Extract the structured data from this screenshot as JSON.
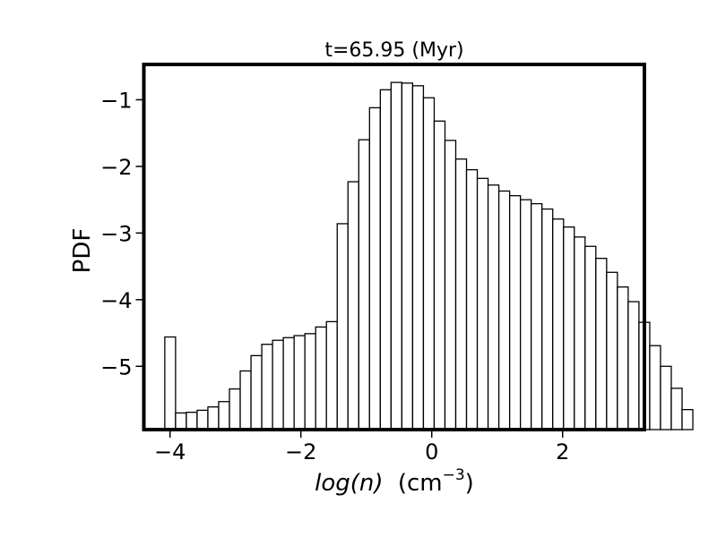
{
  "chart_data": {
    "type": "bar",
    "title": "t=65.95 (Myr)",
    "xlabel": {
      "var": "log(n)",
      "unit_base": "cm",
      "unit_exp": "−3"
    },
    "ylabel": "PDF",
    "xlim": [
      -4.4,
      3.25
    ],
    "ylim": [
      -5.95,
      -0.47
    ],
    "bin_width": 0.1647,
    "x_ticks": [
      {
        "value": -4,
        "label": "−4"
      },
      {
        "value": -2,
        "label": "−2"
      },
      {
        "value": 0,
        "label": "0"
      },
      {
        "value": 2,
        "label": "2"
      }
    ],
    "y_ticks": [
      {
        "value": -1,
        "label": "−1"
      },
      {
        "value": -2,
        "label": "−2"
      },
      {
        "value": -3,
        "label": "−3"
      },
      {
        "value": -4,
        "label": "−4"
      },
      {
        "value": -5,
        "label": "−5"
      }
    ],
    "bin_edges_start": -4.08,
    "values": [
      -4.56,
      -5.7,
      -5.69,
      -5.66,
      -5.61,
      -5.53,
      -5.34,
      -5.07,
      -4.84,
      -4.67,
      -4.61,
      -4.57,
      -4.54,
      -4.51,
      -4.41,
      -4.33,
      -2.86,
      -2.23,
      -1.6,
      -1.12,
      -0.85,
      -0.74,
      -0.75,
      -0.79,
      -0.97,
      -1.32,
      -1.61,
      -1.89,
      -2.05,
      -2.18,
      -2.28,
      -2.37,
      -2.44,
      -2.5,
      -2.56,
      -2.64,
      -2.79,
      -2.91,
      -3.06,
      -3.2,
      -3.38,
      -3.59,
      -3.81,
      -4.03,
      -4.34,
      -4.69,
      -5.0,
      -5.33,
      -5.65
    ],
    "grid": false,
    "bar_fill": "#ffffff",
    "bar_edge": "#000000"
  }
}
